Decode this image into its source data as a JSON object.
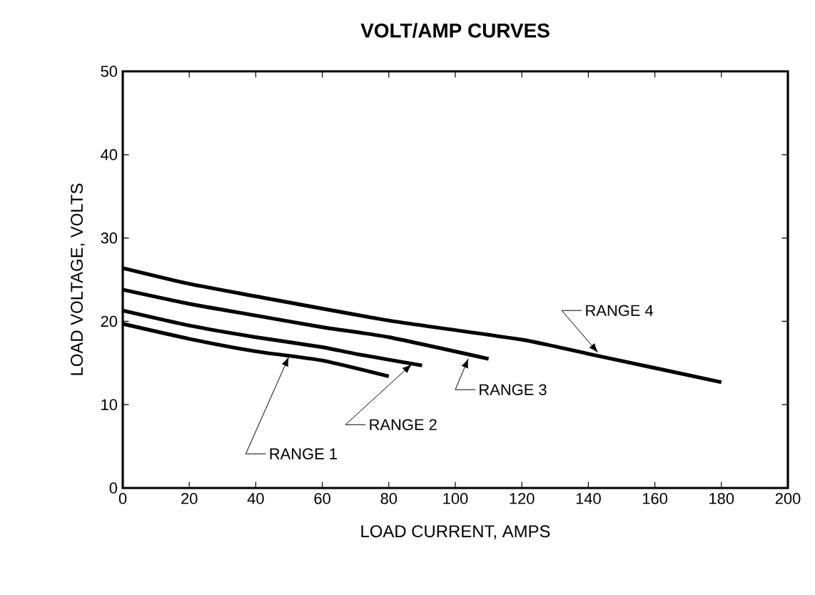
{
  "chart_data": {
    "type": "line",
    "title": "VOLT/AMP CURVES",
    "xlabel": "LOAD CURRENT, AMPS",
    "ylabel": "LOAD VOLTAGE, VOLTS",
    "xlim": [
      0,
      200
    ],
    "ylim": [
      0,
      50
    ],
    "xticks": [
      0,
      20,
      40,
      60,
      80,
      100,
      120,
      140,
      160,
      180,
      200
    ],
    "yticks": [
      0,
      10,
      20,
      30,
      40,
      50
    ],
    "grid": false,
    "marker": "none",
    "line_style": "solid",
    "series": [
      {
        "color": "#000000",
        "x": [
          0,
          20,
          40,
          60,
          80
        ],
        "values": [
          19.7,
          17.9,
          16.4,
          15.3,
          13.4
        ]
      },
      {
        "color": "#000000",
        "x": [
          0,
          20,
          40,
          60,
          70,
          90
        ],
        "values": [
          21.3,
          19.5,
          18.1,
          16.9,
          16.1,
          14.7
        ]
      },
      {
        "color": "#000000",
        "x": [
          0,
          20,
          40,
          60,
          80,
          110
        ],
        "values": [
          23.8,
          22.1,
          20.7,
          19.3,
          18.1,
          15.5
        ]
      },
      {
        "color": "#000000",
        "x": [
          0,
          20,
          40,
          80,
          120,
          140,
          180
        ],
        "values": [
          26.4,
          24.5,
          23.0,
          20.1,
          17.8,
          16.1,
          12.7
        ]
      }
    ],
    "annotations": [
      {
        "text": "RANGE 1",
        "x": 50,
        "y": 15.8
      },
      {
        "text": "RANGE 2",
        "x": 87,
        "y": 14.9
      },
      {
        "text": "RANGE 3",
        "x": 104,
        "y": 15.6
      },
      {
        "text": "RANGE 4",
        "x": 143,
        "y": 16.2
      }
    ]
  }
}
